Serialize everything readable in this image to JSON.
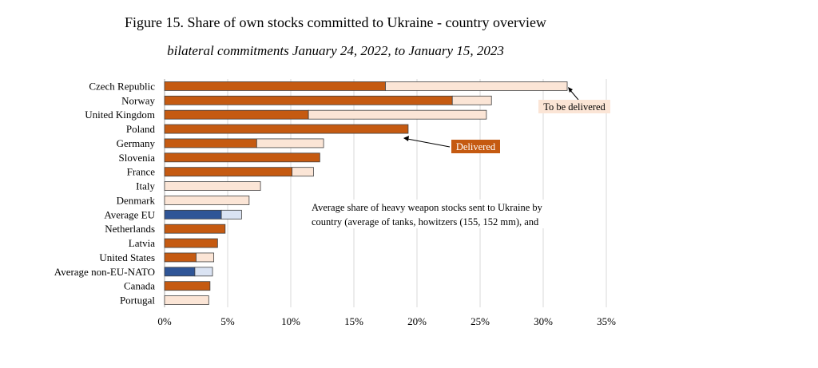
{
  "title": "Figure 15. Share of own stocks committed to Ukraine - country overview",
  "subtitle": "bilateral commitments January 24, 2022, to January 15, 2023",
  "chart_data": {
    "type": "bar",
    "orientation": "horizontal",
    "stacked": true,
    "categories": [
      "Czech Republic",
      "Norway",
      "United Kingdom",
      "Poland",
      "Germany",
      "Slovenia",
      "France",
      "Italy",
      "Denmark",
      "Average EU",
      "Netherlands",
      "Latvia",
      "United States",
      "Average non-EU-NATO",
      "Canada",
      "Portugal"
    ],
    "series": [
      {
        "name": "Delivered",
        "values": [
          17.5,
          22.8,
          11.4,
          19.3,
          7.3,
          12.3,
          10.1,
          0,
          0,
          4.5,
          4.8,
          4.2,
          2.5,
          2.4,
          3.6,
          0
        ]
      },
      {
        "name": "To be delivered",
        "values": [
          14.4,
          3.1,
          14.1,
          0,
          5.3,
          0,
          1.7,
          7.6,
          6.7,
          1.6,
          0,
          0,
          1.4,
          1.4,
          0,
          3.5
        ]
      }
    ],
    "highlight_categories": [
      "Average EU",
      "Average non-EU-NATO"
    ],
    "xlim": [
      0,
      35
    ],
    "xticks": [
      "0%",
      "5%",
      "10%",
      "15%",
      "20%",
      "25%",
      "30%",
      "35%"
    ],
    "annotations": [
      {
        "text": "To be delivered"
      },
      {
        "text": "Delivered"
      },
      {
        "text": "Average share of heavy weapon stocks sent to Ukraine by"
      },
      {
        "text": "country (average of tanks, howitzers (155, 152 mm), and"
      }
    ],
    "grid": "vertical",
    "colors": {
      "delivered": "#c55a11",
      "to_be_delivered": "#fbe5d6",
      "avg_delivered": "#2f5597",
      "avg_to_be_delivered": "#dae3f3",
      "outline": "#404040",
      "grid": "#d9d9d9",
      "tbd_box": "#fbe5d6",
      "delivered_box": "#c55a11"
    }
  }
}
